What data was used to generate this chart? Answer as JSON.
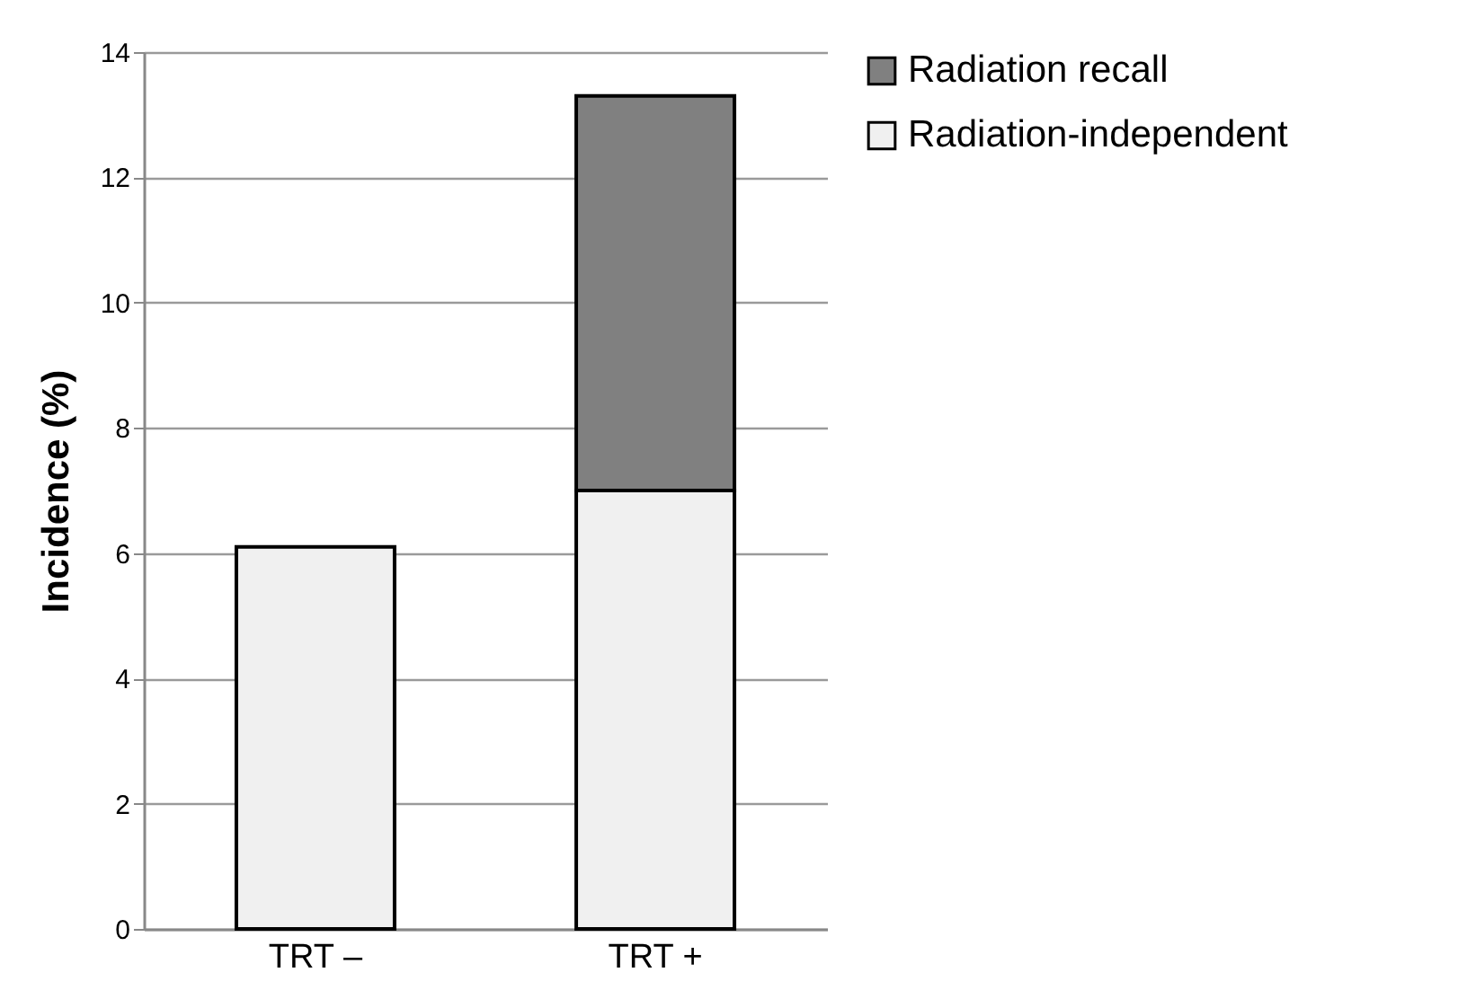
{
  "chart_data": {
    "type": "bar",
    "stacked": true,
    "ylabel": "Incidence (%)",
    "categories": [
      "TRT –",
      "TRT +"
    ],
    "series": [
      {
        "name": "Radiation-independent",
        "color": "#f0f0f0",
        "values": [
          6.1,
          7.0
        ]
      },
      {
        "name": "Radiation recall",
        "color": "#808080",
        "values": [
          null,
          6.3
        ]
      }
    ],
    "ylim": [
      0,
      14
    ],
    "yticks": [
      0,
      2,
      4,
      6,
      8,
      10,
      12,
      14
    ],
    "grid": "y",
    "legend": "right"
  }
}
